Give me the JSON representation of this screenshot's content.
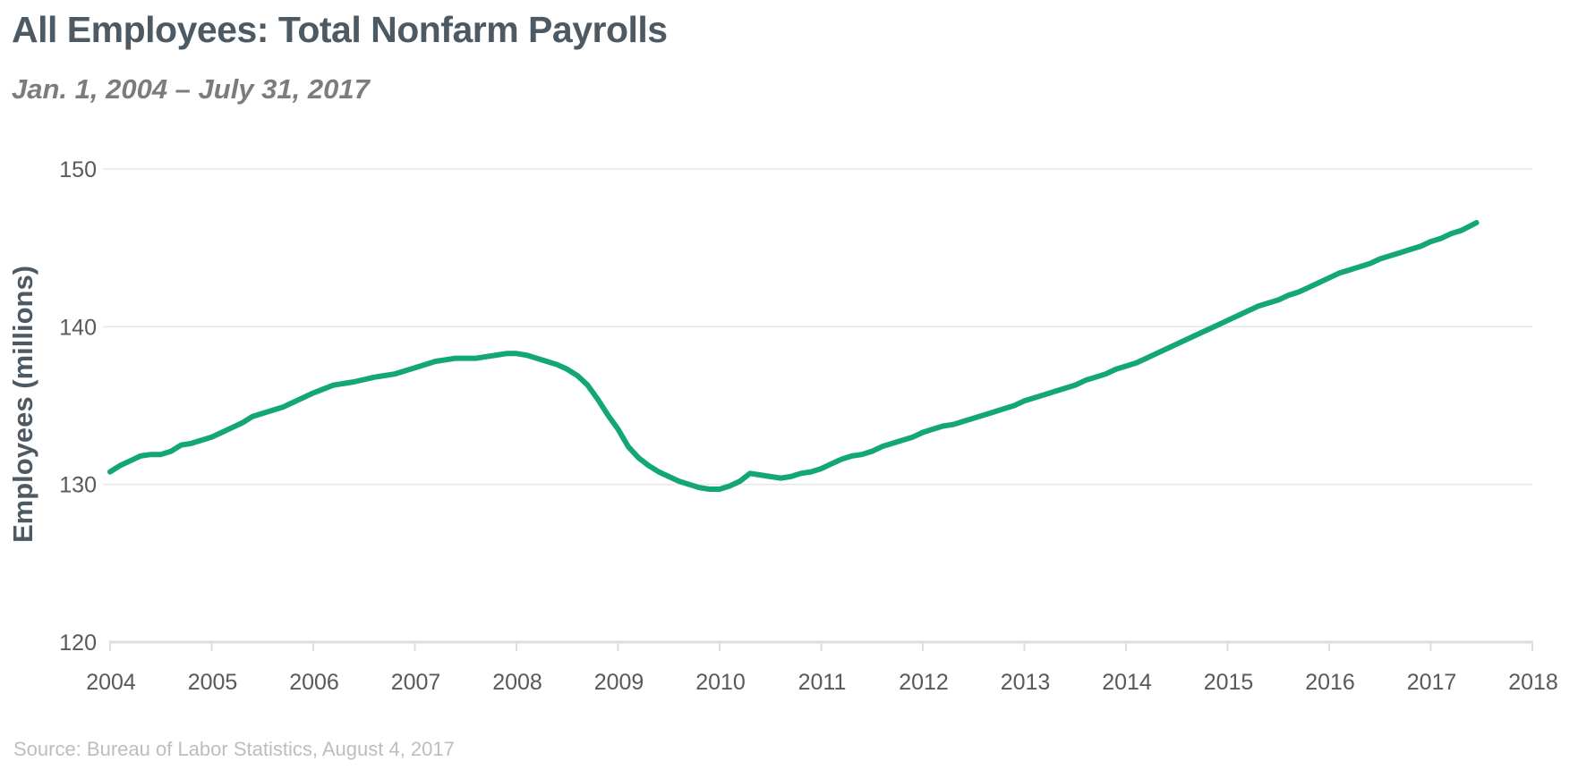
{
  "title": "All Employees: Total Nonfarm Payrolls",
  "subtitle": "Jan. 1, 2004 – July 31, 2017",
  "source": "Source: Bureau of Labor Statistics, August 4, 2017",
  "colors": {
    "line": "#12a678",
    "grid": "#e6e6e6",
    "axis": "#dedede"
  },
  "chart_data": {
    "type": "line",
    "ylabel": "Employees (millions)",
    "xlabel": "",
    "xlim": [
      2004,
      2018
    ],
    "ylim": [
      120,
      150
    ],
    "x_ticks": [
      "2004",
      "2005",
      "2006",
      "2007",
      "2008",
      "2009",
      "2010",
      "2011",
      "2012",
      "2013",
      "2014",
      "2015",
      "2016",
      "2017",
      "2018"
    ],
    "y_ticks": [
      "120",
      "130",
      "140",
      "150"
    ],
    "grid": true,
    "legend": "none",
    "series": [
      {
        "x": [
          2004.0,
          2004.1,
          2004.2,
          2004.3,
          2004.4,
          2004.5,
          2004.6,
          2004.7,
          2004.8,
          2004.9,
          2005.0,
          2005.1,
          2005.2,
          2005.3,
          2005.4,
          2005.5,
          2005.6,
          2005.7,
          2005.8,
          2005.9,
          2006.0,
          2006.2,
          2006.4,
          2006.6,
          2006.7,
          2006.8,
          2006.9,
          2007.0,
          2007.1,
          2007.2,
          2007.4,
          2007.5,
          2007.6,
          2007.7,
          2007.8,
          2007.9,
          2008.0,
          2008.1,
          2008.2,
          2008.3,
          2008.4,
          2008.5,
          2008.6,
          2008.7,
          2008.8,
          2008.9,
          2009.0,
          2009.1,
          2009.2,
          2009.3,
          2009.4,
          2009.5,
          2009.6,
          2009.7,
          2009.8,
          2009.9,
          2010.0,
          2010.1,
          2010.2,
          2010.3,
          2010.4,
          2010.5,
          2010.6,
          2010.7,
          2010.8,
          2010.9,
          2011.0,
          2011.1,
          2011.2,
          2011.3,
          2011.4,
          2011.5,
          2011.6,
          2011.7,
          2011.8,
          2011.9,
          2012.0,
          2012.1,
          2012.2,
          2012.3,
          2012.4,
          2012.5,
          2012.6,
          2012.7,
          2012.8,
          2012.9,
          2013.0,
          2013.1,
          2013.2,
          2013.3,
          2013.4,
          2013.5,
          2013.6,
          2013.7,
          2013.8,
          2013.9,
          2014.0,
          2014.1,
          2014.2,
          2014.3,
          2014.4,
          2014.5,
          2014.6,
          2014.7,
          2014.8,
          2014.9,
          2015.0,
          2015.1,
          2015.2,
          2015.3,
          2015.4,
          2015.5,
          2015.6,
          2015.7,
          2015.8,
          2015.9,
          2016.0,
          2016.1,
          2016.2,
          2016.3,
          2016.4,
          2016.5,
          2016.6,
          2016.7,
          2016.8,
          2016.9,
          2017.0,
          2017.1,
          2017.2,
          2017.3,
          2017.45
        ],
        "values": [
          130.8,
          131.2,
          131.5,
          131.8,
          131.9,
          131.9,
          132.1,
          132.5,
          132.6,
          132.8,
          133.0,
          133.3,
          133.6,
          133.9,
          134.3,
          134.5,
          134.7,
          134.9,
          135.2,
          135.5,
          135.8,
          136.3,
          136.5,
          136.8,
          136.9,
          137.0,
          137.2,
          137.4,
          137.6,
          137.8,
          138.0,
          138.0,
          138.0,
          138.1,
          138.2,
          138.3,
          138.3,
          138.2,
          138.0,
          137.8,
          137.6,
          137.3,
          136.9,
          136.3,
          135.4,
          134.4,
          133.5,
          132.4,
          131.7,
          131.2,
          130.8,
          130.5,
          130.2,
          130.0,
          129.8,
          129.7,
          129.7,
          129.9,
          130.2,
          130.7,
          130.6,
          130.5,
          130.4,
          130.5,
          130.7,
          130.8,
          131.0,
          131.3,
          131.6,
          131.8,
          131.9,
          132.1,
          132.4,
          132.6,
          132.8,
          133.0,
          133.3,
          133.5,
          133.7,
          133.8,
          134.0,
          134.2,
          134.4,
          134.6,
          134.8,
          135.0,
          135.3,
          135.5,
          135.7,
          135.9,
          136.1,
          136.3,
          136.6,
          136.8,
          137.0,
          137.3,
          137.5,
          137.7,
          138.0,
          138.3,
          138.6,
          138.9,
          139.2,
          139.5,
          139.8,
          140.1,
          140.4,
          140.7,
          141.0,
          141.3,
          141.5,
          141.7,
          142.0,
          142.2,
          142.5,
          142.8,
          143.1,
          143.4,
          143.6,
          143.8,
          144.0,
          144.3,
          144.5,
          144.7,
          144.9,
          145.1,
          145.4,
          145.6,
          145.9,
          146.1,
          146.6
        ]
      }
    ]
  }
}
